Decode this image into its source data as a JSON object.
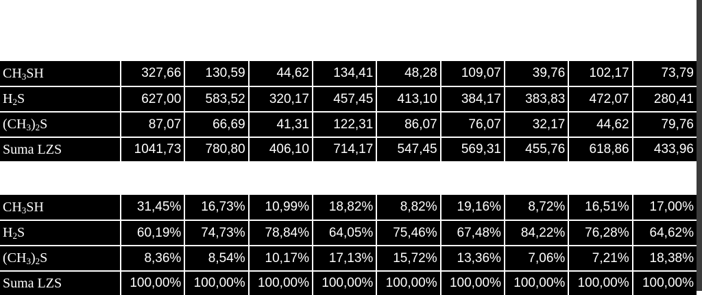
{
  "absolute_table": {
    "rows": [
      {
        "label_html": "CH<sub>3</sub>SH",
        "values": [
          "327,66",
          "130,59",
          "44,62",
          "134,41",
          "48,28",
          "109,07",
          "39,76",
          "102,17",
          "73,79"
        ]
      },
      {
        "label_html": "H<sub>2</sub>S",
        "values": [
          "627,00",
          "583,52",
          "320,17",
          "457,45",
          "413,10",
          "384,17",
          "383,83",
          "472,07",
          "280,41"
        ]
      },
      {
        "label_html": "(CH<sub>3</sub>)<sub>2</sub>S",
        "values": [
          "87,07",
          "66,69",
          "41,31",
          "122,31",
          "86,07",
          "76,07",
          "32,17",
          "44,62",
          "79,76"
        ]
      },
      {
        "label_html": "Suma LZS",
        "values": [
          "1041,73",
          "780,80",
          "406,10",
          "714,17",
          "547,45",
          "569,31",
          "455,76",
          "618,86",
          "433,96"
        ]
      }
    ]
  },
  "percent_table": {
    "rows": [
      {
        "label_html": "CH<sub>3</sub>SH",
        "values": [
          "31,45%",
          "16,73%",
          "10,99%",
          "18,82%",
          "8,82%",
          "19,16%",
          "8,72%",
          "16,51%",
          "17,00%"
        ]
      },
      {
        "label_html": "H<sub>2</sub>S",
        "values": [
          "60,19%",
          "74,73%",
          "78,84%",
          "64,05%",
          "75,46%",
          "67,48%",
          "84,22%",
          "76,28%",
          "64,62%"
        ]
      },
      {
        "label_html": "(CH<sub>3</sub>)<sub>2</sub>S",
        "values": [
          "8,36%",
          "8,54%",
          "10,17%",
          "17,13%",
          "15,72%",
          "13,36%",
          "7,06%",
          "7,21%",
          "18,38%"
        ]
      },
      {
        "label_html": "Suma LZS",
        "values": [
          "100,00%",
          "100,00%",
          "100,00%",
          "100,00%",
          "100,00%",
          "100,00%",
          "100,00%",
          "100,00%",
          "100,00%"
        ]
      }
    ]
  }
}
